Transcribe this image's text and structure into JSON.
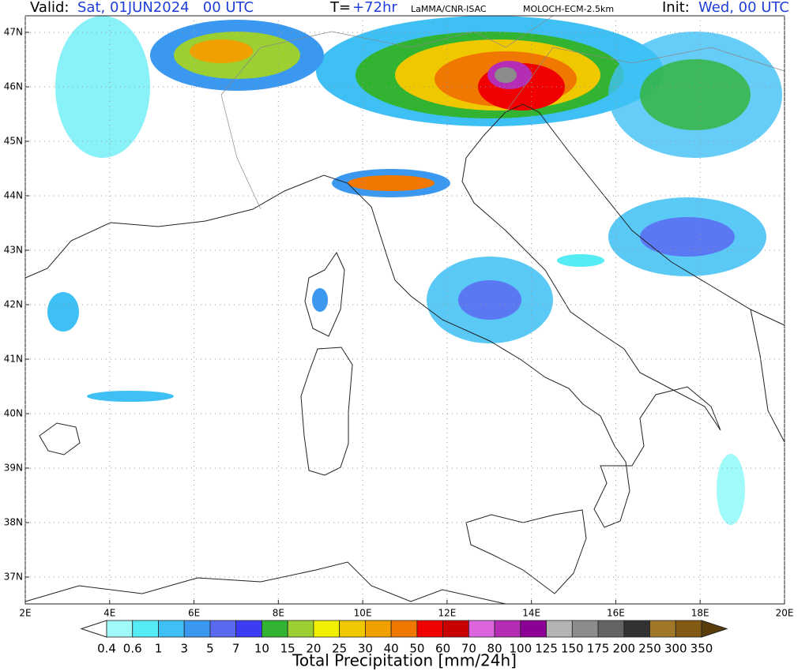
{
  "header": {
    "valid_label": "Valid:",
    "valid_value": "Sat, 01JUN2024   00 UTC",
    "lead_label": "T=",
    "lead_value": "+72hr",
    "source": "LaMMA/CNR-ISAC",
    "model": "MOLOCH-ECM-2.5km",
    "init_label": "Init:",
    "init_value": "Wed, 00 UTC"
  },
  "map": {
    "lat_labels": [
      "47N",
      "46N",
      "45N",
      "44N",
      "43N",
      "42N",
      "41N",
      "40N",
      "39N",
      "38N",
      "37N"
    ],
    "lon_labels": [
      "2E",
      "4E",
      "6E",
      "8E",
      "10E",
      "12E",
      "14E",
      "16E",
      "18E",
      "20E"
    ]
  },
  "colorbar": {
    "labels": [
      "0.4",
      "0.6",
      "1",
      "3",
      "5",
      "7",
      "10",
      "15",
      "20",
      "25",
      "30",
      "40",
      "50",
      "60",
      "70",
      "80",
      "100",
      "125",
      "150",
      "175",
      "200",
      "250",
      "300",
      "350"
    ],
    "colors": [
      "#ffffff",
      "#a0fafa",
      "#55ecf5",
      "#3ec0f5",
      "#3a98f0",
      "#5a6af0",
      "#3c3cf5",
      "#32b432",
      "#9ccf32",
      "#f0f000",
      "#f0c800",
      "#f0a000",
      "#f07800",
      "#f00000",
      "#c80000",
      "#dc64dc",
      "#b42db4",
      "#8c0096",
      "#b4b4b4",
      "#8c8c8c",
      "#646464",
      "#323232",
      "#a07828",
      "#825a14",
      "#5a3c0a"
    ],
    "title": "Total Precipitation [mm/24h]"
  }
}
